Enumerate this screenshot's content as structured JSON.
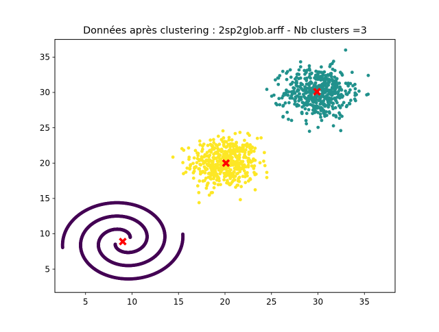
{
  "chart_data": {
    "type": "scatter",
    "title": "Données après clustering : 2sp2glob.arff - Nb clusters =3",
    "xlabel": "",
    "ylabel": "",
    "xlim": [
      1.7,
      38.3
    ],
    "ylim": [
      1.7,
      37.5
    ],
    "xticks": [
      5,
      10,
      15,
      20,
      25,
      30,
      35
    ],
    "yticks": [
      5,
      10,
      15,
      20,
      25,
      30,
      35
    ],
    "xtick_labels": [
      "5",
      "10",
      "15",
      "20",
      "25",
      "30",
      "35"
    ],
    "ytick_labels": [
      "5",
      "10",
      "15",
      "20",
      "25",
      "30",
      "35"
    ],
    "grid": false,
    "legend": "none",
    "clusters": [
      {
        "shape": "double-spiral",
        "color": "#440154",
        "center": [
          9,
          9
        ],
        "x_range": [
          2.5,
          16
        ],
        "y_range": [
          3.3,
          14.7
        ]
      },
      {
        "shape": "gaussian-blob",
        "color": "#fde725",
        "center": [
          20,
          20
        ],
        "x_range": [
          14.4,
          24.5
        ],
        "y_range": [
          14.4,
          26
        ]
      },
      {
        "shape": "gaussian-blob",
        "color": "#21918c",
        "center": [
          30,
          30
        ],
        "x_range": [
          24.5,
          36.8
        ],
        "y_range": [
          24.5,
          36
        ]
      }
    ],
    "centroids": {
      "marker": "X",
      "color": "#ff0000",
      "points": [
        [
          9,
          8.9
        ],
        [
          20.1,
          20
        ],
        [
          29.9,
          30.1
        ]
      ]
    }
  }
}
